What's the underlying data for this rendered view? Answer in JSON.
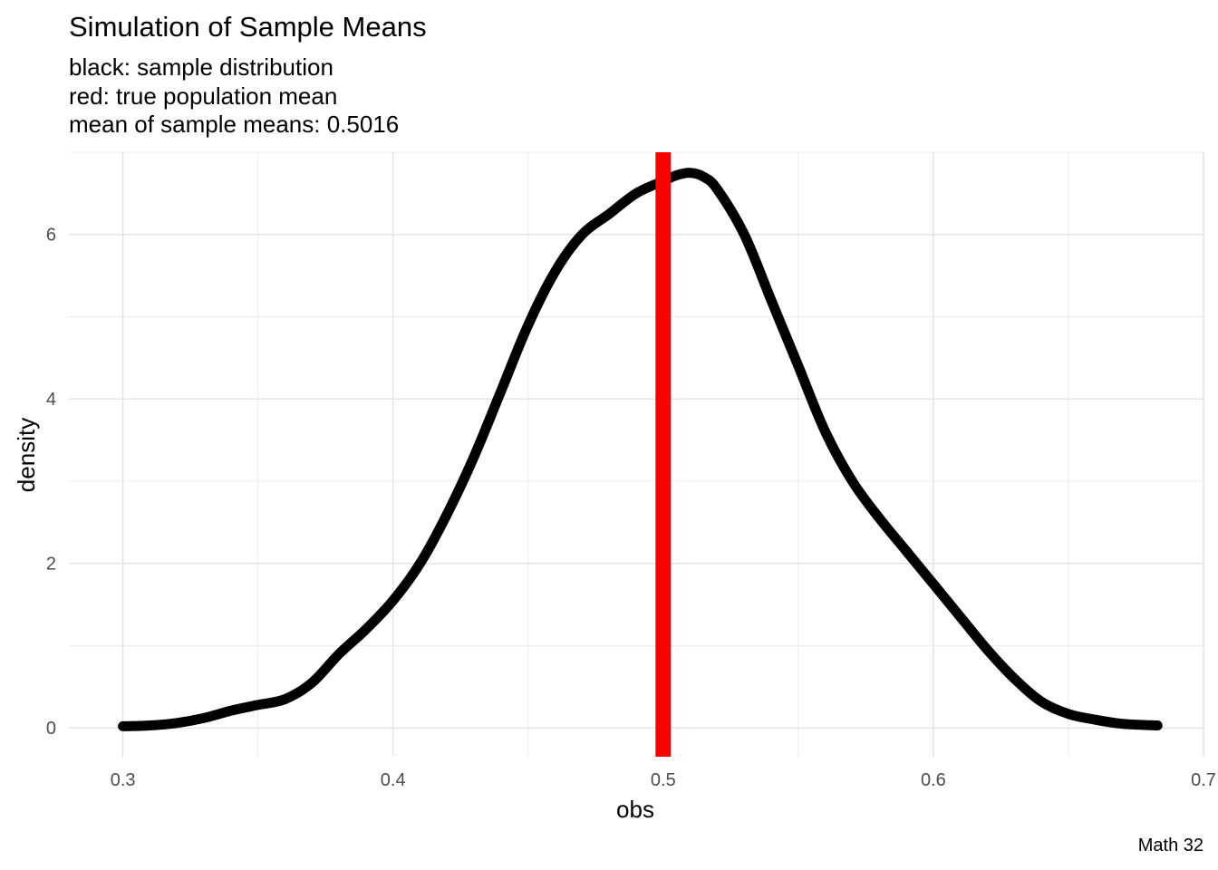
{
  "chart_data": {
    "type": "line",
    "title": "Simulation of Sample Means",
    "subtitle": [
      "black: sample distribution",
      "red: true population mean",
      "mean of sample means:  0.5016"
    ],
    "caption": "Math 32",
    "xlabel": "obs",
    "ylabel": "density",
    "xlim": [
      0.28,
      0.7
    ],
    "ylim": [
      -0.35,
      7.0
    ],
    "x_ticks": [
      0.3,
      0.4,
      0.5,
      0.6,
      0.7
    ],
    "x_tick_labels": [
      "0.3",
      "0.4",
      "0.5",
      "0.6",
      "0.7"
    ],
    "y_ticks": [
      0,
      2,
      4,
      6
    ],
    "y_tick_labels": [
      "0",
      "2",
      "4",
      "6"
    ],
    "grid": true,
    "series": [
      {
        "color": "#000000",
        "x": [
          0.3,
          0.31,
          0.32,
          0.33,
          0.34,
          0.35,
          0.36,
          0.37,
          0.38,
          0.39,
          0.4,
          0.41,
          0.42,
          0.43,
          0.44,
          0.45,
          0.46,
          0.47,
          0.48,
          0.49,
          0.5,
          0.505,
          0.51,
          0.515,
          0.52,
          0.53,
          0.54,
          0.55,
          0.56,
          0.57,
          0.58,
          0.59,
          0.6,
          0.61,
          0.62,
          0.63,
          0.64,
          0.65,
          0.66,
          0.67,
          0.683
        ],
        "values": [
          0.02,
          0.03,
          0.06,
          0.12,
          0.21,
          0.28,
          0.35,
          0.55,
          0.9,
          1.2,
          1.55,
          2.0,
          2.6,
          3.3,
          4.1,
          4.9,
          5.55,
          6.0,
          6.25,
          6.5,
          6.65,
          6.72,
          6.75,
          6.7,
          6.55,
          6.0,
          5.2,
          4.4,
          3.6,
          3.0,
          2.55,
          2.15,
          1.75,
          1.35,
          0.95,
          0.6,
          0.32,
          0.17,
          0.1,
          0.05,
          0.03
        ]
      }
    ],
    "vlines": [
      {
        "x": 0.5,
        "color": "#ff0000"
      }
    ]
  }
}
